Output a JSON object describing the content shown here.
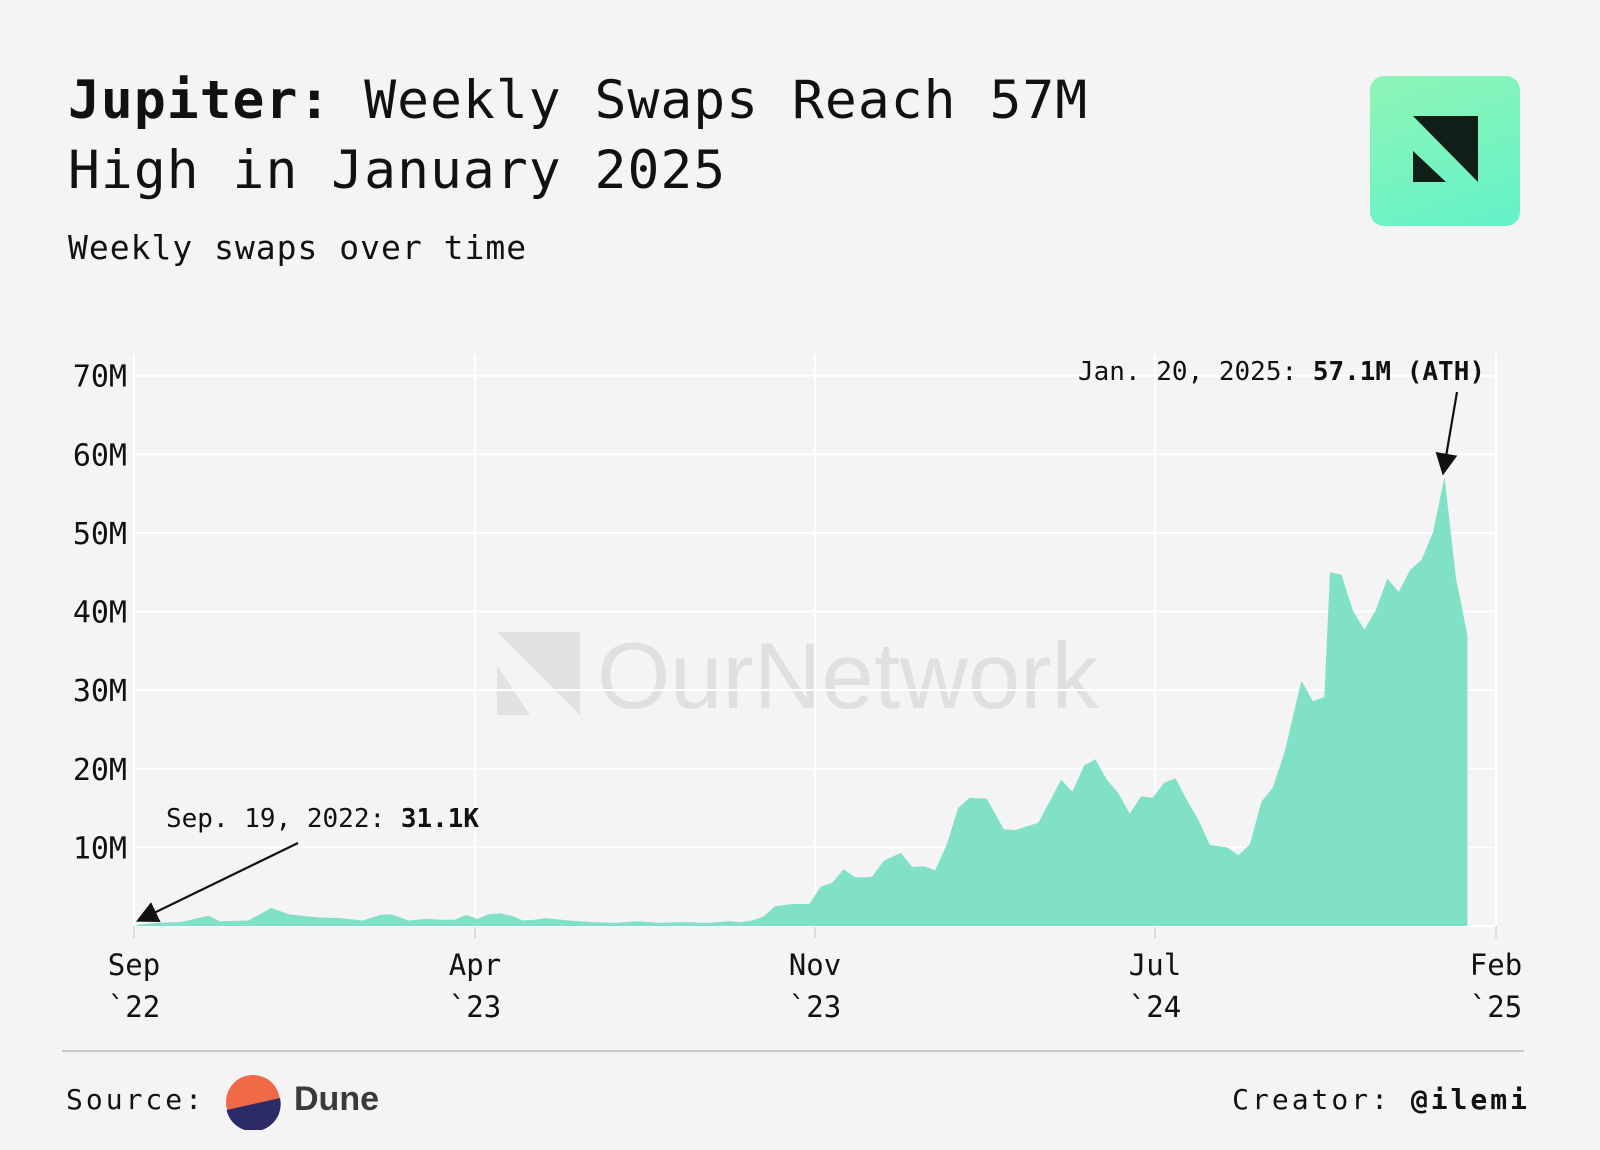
{
  "header": {
    "title_bold": "Jupiter:",
    "title_rest": " Weekly Swaps Reach 57M High in January 2025",
    "subtitle": "Weekly swaps over time"
  },
  "brand": {
    "logo_icon": "ournetwork-logo-icon",
    "watermark": "OurNetwork"
  },
  "footer": {
    "source_label": "Source:",
    "source_name": "Dune",
    "creator_label": "Creator:",
    "creator_handle": "@ilemi"
  },
  "colors": {
    "background": "#f4f4f4",
    "area_fill": "#7de0c6",
    "logo_gradient_start": "#8ff5b6",
    "logo_gradient_end": "#62f2c8",
    "logo_mark": "#0f1f17",
    "dune_orange": "#f26a45",
    "dune_navy": "#2c2a68"
  },
  "chart_data": {
    "type": "area",
    "title": "",
    "xlabel": "",
    "ylabel": "",
    "x_range": [
      "2022-09-19",
      "2025-02-03"
    ],
    "ylim": [
      0,
      72000000
    ],
    "yticks": [
      {
        "value": 10000000,
        "label": "10M"
      },
      {
        "value": 20000000,
        "label": "20M"
      },
      {
        "value": 30000000,
        "label": "30M"
      },
      {
        "value": 40000000,
        "label": "40M"
      },
      {
        "value": 50000000,
        "label": "50M"
      },
      {
        "value": 60000000,
        "label": "60M"
      },
      {
        "value": 70000000,
        "label": "70M"
      }
    ],
    "xticks": [
      {
        "date": "2022-09-19",
        "month": "Sep",
        "year": "`22"
      },
      {
        "date": "2023-04-03",
        "month": "Apr",
        "year": "`23"
      },
      {
        "date": "2023-11-20",
        "month": "Nov",
        "year": "`23"
      },
      {
        "date": "2024-07-08",
        "month": "Jul",
        "year": "`24"
      },
      {
        "date": "2025-02-03",
        "month": "Feb",
        "year": "`25"
      }
    ],
    "grid": true,
    "series": [
      {
        "values": [
          [
            0.0,
            31100
          ],
          [
            0.006,
            200000
          ],
          [
            0.02,
            400000
          ],
          [
            0.04,
            500000
          ],
          [
            0.05,
            800000
          ],
          [
            0.065,
            1300000
          ],
          [
            0.075,
            600000
          ],
          [
            0.1,
            700000
          ],
          [
            0.12,
            2300000
          ],
          [
            0.135,
            1500000
          ],
          [
            0.16,
            1100000
          ],
          [
            0.18,
            1000000
          ],
          [
            0.2,
            700000
          ],
          [
            0.215,
            1400000
          ],
          [
            0.225,
            1500000
          ],
          [
            0.24,
            700000
          ],
          [
            0.255,
            900000
          ],
          [
            0.27,
            800000
          ],
          [
            0.28,
            800000
          ],
          [
            0.29,
            1400000
          ],
          [
            0.3,
            900000
          ],
          [
            0.31,
            1500000
          ],
          [
            0.32,
            1600000
          ],
          [
            0.33,
            1300000
          ],
          [
            0.34,
            700000
          ],
          [
            0.35,
            800000
          ],
          [
            0.36,
            1000000
          ],
          [
            0.38,
            700000
          ],
          [
            0.4,
            500000
          ],
          [
            0.42,
            400000
          ],
          [
            0.44,
            600000
          ],
          [
            0.46,
            400000
          ],
          [
            0.48,
            500000
          ],
          [
            0.5,
            400000
          ],
          [
            0.52,
            600000
          ],
          [
            0.53,
            500000
          ],
          [
            0.54,
            700000
          ],
          [
            0.55,
            1200000
          ],
          [
            0.56,
            2500000
          ],
          [
            0.575,
            2800000
          ],
          [
            0.59,
            2800000
          ],
          [
            0.6,
            5000000
          ],
          [
            0.61,
            5500000
          ],
          [
            0.62,
            7200000
          ],
          [
            0.63,
            6200000
          ],
          [
            0.64,
            6200000
          ],
          [
            0.645,
            6300000
          ],
          [
            0.655,
            8300000
          ],
          [
            0.67,
            9300000
          ],
          [
            0.68,
            7500000
          ],
          [
            0.69,
            7600000
          ],
          [
            0.7,
            7100000
          ],
          [
            0.71,
            10300000
          ],
          [
            0.72,
            15000000
          ],
          [
            0.73,
            16300000
          ],
          [
            0.745,
            16200000
          ],
          [
            0.76,
            12300000
          ],
          [
            0.77,
            12200000
          ],
          [
            0.78,
            12700000
          ],
          [
            0.79,
            13100000
          ],
          [
            0.8,
            15800000
          ],
          [
            0.81,
            18600000
          ],
          [
            0.82,
            17100000
          ],
          [
            0.83,
            20400000
          ],
          [
            0.84,
            21200000
          ],
          [
            0.85,
            18600000
          ],
          [
            0.86,
            16900000
          ],
          [
            0.87,
            14300000
          ],
          [
            0.88,
            16500000
          ],
          [
            0.89,
            16300000
          ],
          [
            0.9,
            18200000
          ],
          [
            0.91,
            18800000
          ],
          [
            0.92,
            16000000
          ],
          [
            0.93,
            13500000
          ],
          [
            0.94,
            10300000
          ],
          [
            0.955,
            10000000
          ],
          [
            0.965,
            9000000
          ],
          [
            0.975,
            10400000
          ],
          [
            0.985,
            15800000
          ],
          [
            0.995,
            17600000
          ],
          [
            1.005,
            22000000
          ],
          [
            1.02,
            31200000
          ],
          [
            1.03,
            28600000
          ],
          [
            1.04,
            29100000
          ],
          [
            1.045,
            45000000
          ],
          [
            1.055,
            44700000
          ],
          [
            1.065,
            40100000
          ],
          [
            1.075,
            37700000
          ],
          [
            1.085,
            40200000
          ],
          [
            1.095,
            44200000
          ],
          [
            1.105,
            42500000
          ],
          [
            1.115,
            45300000
          ],
          [
            1.125,
            46600000
          ],
          [
            1.135,
            50100000
          ],
          [
            1.145,
            57100000
          ],
          [
            1.155,
            44300000
          ],
          [
            1.165,
            37000000
          ]
        ]
      }
    ],
    "annotations": [
      {
        "date_label": "Sep. 19, 2022:",
        "value_label": "31.1K",
        "x": 0.0,
        "y": 31100
      },
      {
        "date_label": "Jan. 20, 2025:",
        "value_label": "57.1M (ATH)",
        "x": 1.145,
        "y": 57100000
      }
    ]
  }
}
